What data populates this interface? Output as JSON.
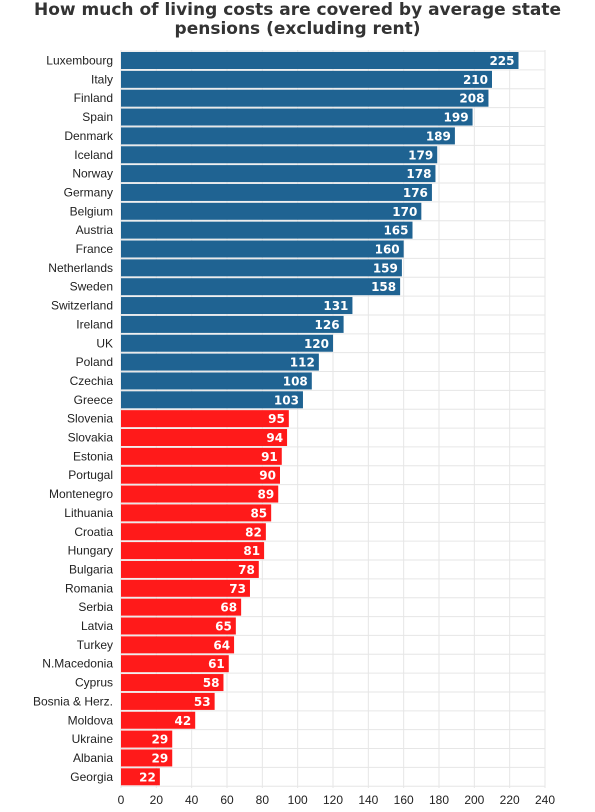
{
  "chart_data": {
    "type": "bar",
    "orientation": "horizontal",
    "title": "How much of living costs are covered by average state pensions (excluding rent)",
    "title_lines": [
      "How much of living costs are covered by average state",
      "pensions (excluding rent)"
    ],
    "xlabel": "",
    "ylabel": "",
    "xlim": [
      0,
      240
    ],
    "ticks": [
      0,
      20,
      40,
      60,
      80,
      100,
      120,
      140,
      160,
      180,
      200,
      220,
      240
    ],
    "grid": true,
    "legend": "none",
    "colors": {
      "above_100": "#1f6392",
      "below_100": "#ff1a1a"
    },
    "categories": [
      "Luxembourg",
      "Italy",
      "Finland",
      "Spain",
      "Denmark",
      "Iceland",
      "Norway",
      "Germany",
      "Belgium",
      "Austria",
      "France",
      "Netherlands",
      "Sweden",
      "Switzerland",
      "Ireland",
      "UK",
      "Poland",
      "Czechia",
      "Greece",
      "Slovenia",
      "Slovakia",
      "Estonia",
      "Portugal",
      "Montenegro",
      "Lithuania",
      "Croatia",
      "Hungary",
      "Bulgaria",
      "Romania",
      "Serbia",
      "Latvia",
      "Turkey",
      "N.Macedonia",
      "Cyprus",
      "Bosnia & Herz.",
      "Moldova",
      "Ukraine",
      "Albania",
      "Georgia"
    ],
    "values": [
      225,
      210,
      208,
      199,
      189,
      179,
      178,
      176,
      170,
      165,
      160,
      159,
      158,
      131,
      126,
      120,
      112,
      108,
      103,
      95,
      94,
      91,
      90,
      89,
      85,
      82,
      81,
      78,
      73,
      68,
      65,
      64,
      61,
      58,
      53,
      42,
      29,
      29,
      22
    ]
  }
}
